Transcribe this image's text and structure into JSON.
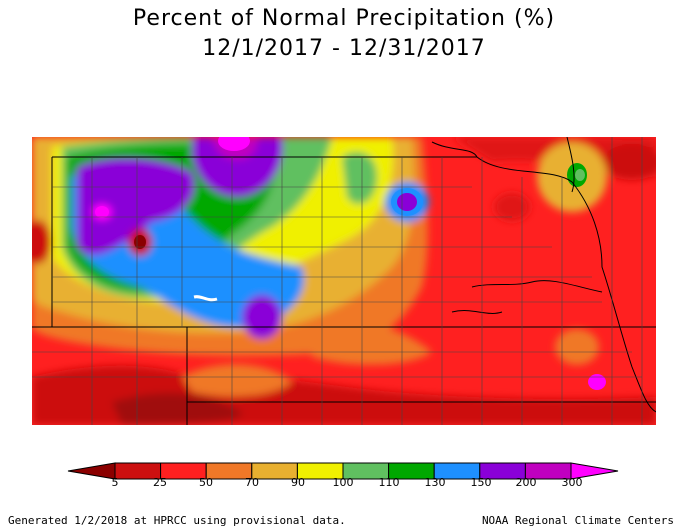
{
  "title": "Percent of Normal Precipitation (%)",
  "subtitle": "12/1/2017 - 12/31/2017",
  "legend": {
    "labels": [
      "5",
      "25",
      "50",
      "70",
      "90",
      "100",
      "110",
      "130",
      "150",
      "200",
      "300"
    ],
    "colors": [
      "#8b0000",
      "#cc1010",
      "#ff2020",
      "#f07828",
      "#e8b030",
      "#f0f000",
      "#60c060",
      "#00a800",
      "#1e90ff",
      "#8a00d8",
      "#c000c0",
      "#ff00ff"
    ]
  },
  "footer": {
    "left": "Generated 1/2/2018 at HPRCC using provisional data.",
    "right": "NOAA Regional Climate Centers"
  },
  "colors": {
    "background": "#ffffff",
    "border": "#000000",
    "base_map": "#ff2020"
  }
}
